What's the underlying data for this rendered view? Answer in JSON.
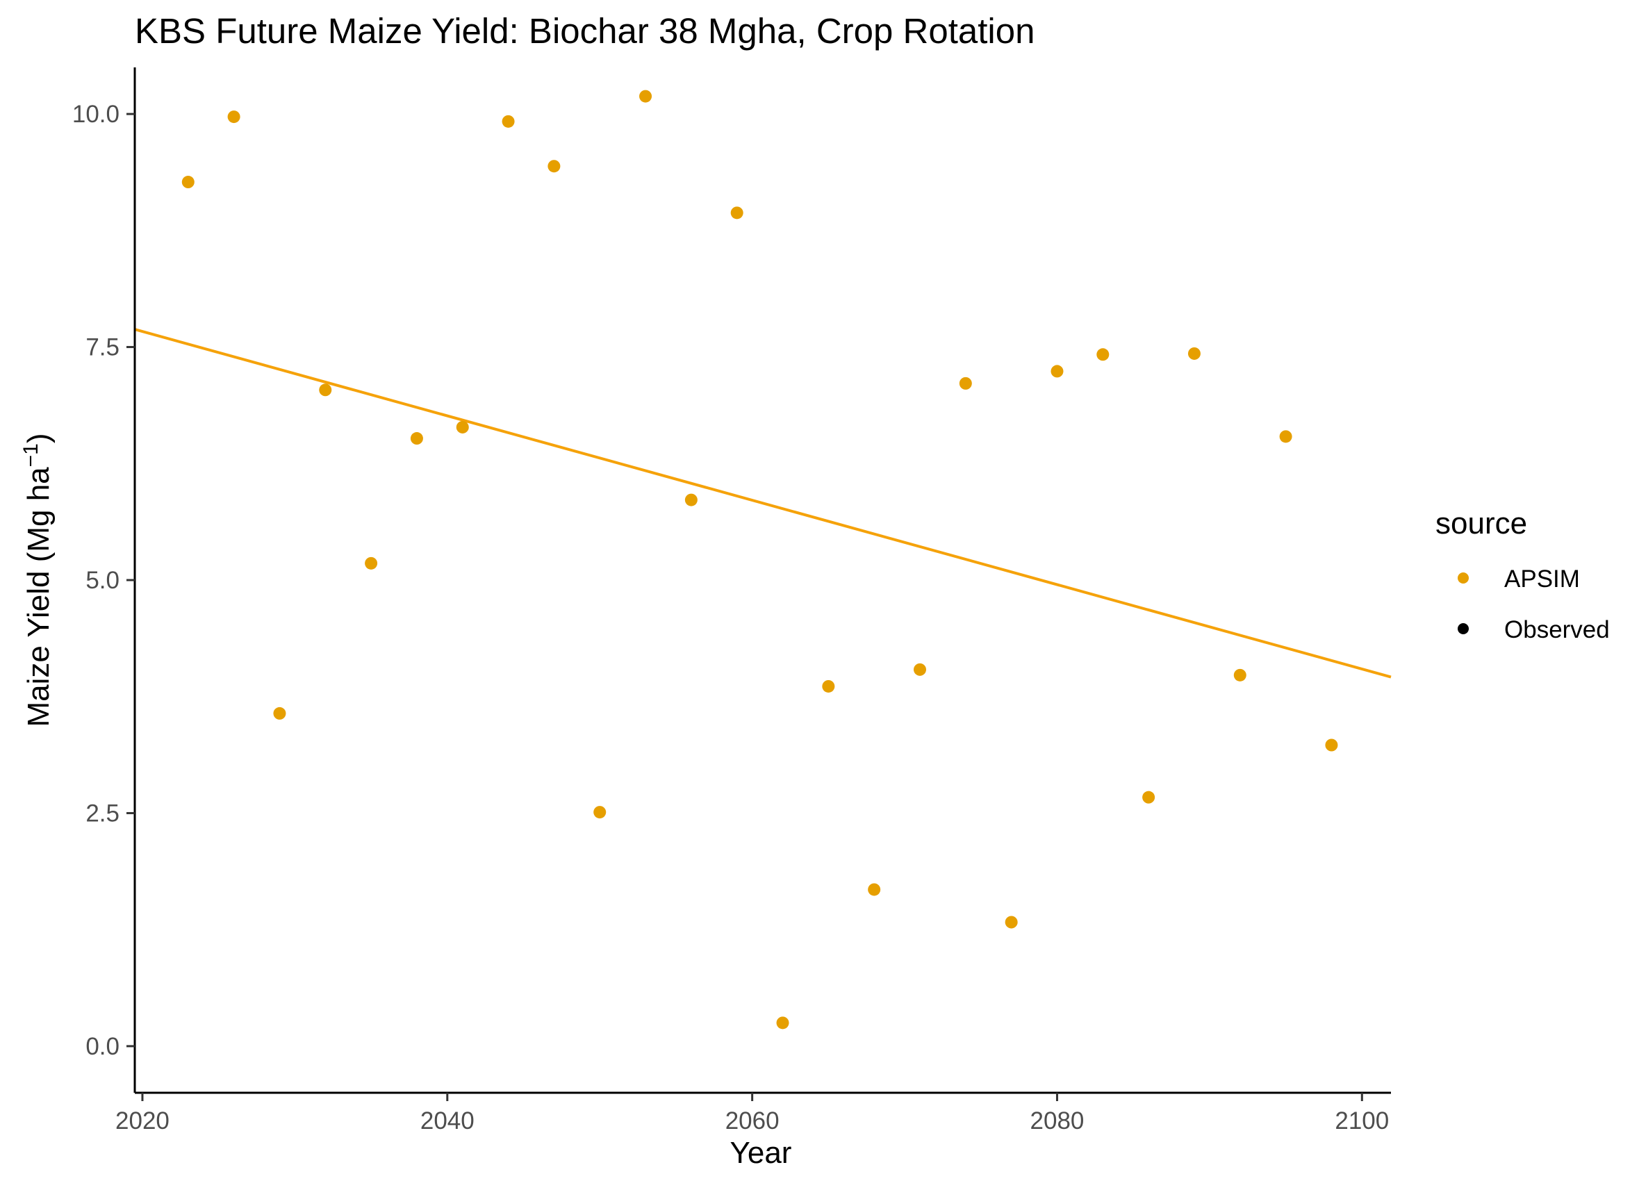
{
  "chart_data": {
    "type": "scatter",
    "title": "KBS Future Maize Yield:  Biochar 38 Mgha, Crop Rotation",
    "xlabel": "Year",
    "ylabel": "Maize Yield (Mg ha",
    "ylabel_sup": "−1",
    "ylabel_close": ")",
    "xlim": [
      2019.5,
      2101.9
    ],
    "ylim": [
      -0.5,
      10.5
    ],
    "xticks": [
      2020,
      2040,
      2060,
      2080,
      2100
    ],
    "yticks": [
      0.0,
      2.5,
      5.0,
      7.5,
      10.0
    ],
    "xtick_labels": [
      "2020",
      "2040",
      "2060",
      "2080",
      "2100"
    ],
    "ytick_labels": [
      "0.0",
      "2.5",
      "5.0",
      "7.5",
      "10.0"
    ],
    "grid": false,
    "legend": {
      "title": "source",
      "position": "right",
      "entries": [
        {
          "label": "APSIM",
          "color": "#E69F00"
        },
        {
          "label": "Observed",
          "color": "#000000"
        }
      ]
    },
    "series": [
      {
        "name": "APSIM",
        "color": "#E69F00",
        "x": [
          2023,
          2026,
          2029,
          2032,
          2035,
          2038,
          2041,
          2044,
          2047,
          2050,
          2053,
          2056,
          2059,
          2062,
          2065,
          2068,
          2071,
          2074,
          2077,
          2080,
          2083,
          2086,
          2089,
          2092,
          2095,
          2098
        ],
        "y": [
          9.27,
          9.97,
          3.57,
          7.04,
          5.18,
          6.52,
          6.64,
          9.92,
          9.44,
          2.51,
          10.19,
          5.86,
          8.94,
          0.25,
          3.86,
          1.68,
          4.04,
          7.11,
          1.33,
          7.24,
          7.42,
          2.67,
          7.43,
          3.98,
          6.54,
          3.23
        ]
      },
      {
        "name": "Observed",
        "color": "#000000",
        "x": [],
        "y": []
      }
    ],
    "trend_line": {
      "series": "APSIM",
      "color": "#F5A20A",
      "x": [
        2019.5,
        2101.9
      ],
      "y": [
        7.69,
        3.96
      ]
    }
  }
}
